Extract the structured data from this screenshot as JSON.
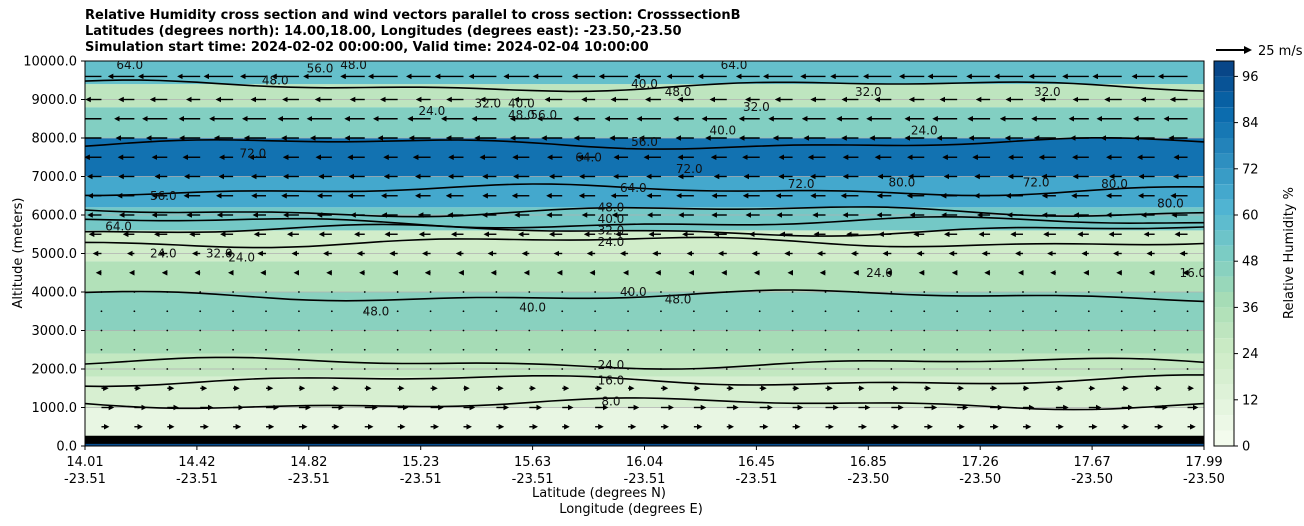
{
  "chart_data": {
    "type": "contour",
    "title_lines": [
      "Relative Humidity cross section and wind vectors parallel to cross section: CrosssectionB",
      "Latitudes (degrees north): 14.00,18.00, Longitudes (degrees east): -23.50,-23.50",
      "Simulation start time: 2024-02-02 00:00:00, Valid time: 2024-02-04 10:00:00"
    ],
    "ylabel": "Altitude (meters)",
    "xlabel_lat": "Latitude (degrees N)",
    "xlabel_lon": "Longitude (degrees E)",
    "ylim": [
      0,
      10000
    ],
    "y_ticks": [
      "0.0",
      "1000.0",
      "2000.0",
      "3000.0",
      "4000.0",
      "5000.0",
      "6000.0",
      "7000.0",
      "8000.0",
      "9000.0",
      "10000.0"
    ],
    "x_ticks": [
      {
        "lat": "14.01",
        "lon": "-23.51"
      },
      {
        "lat": "14.42",
        "lon": "-23.51"
      },
      {
        "lat": "14.82",
        "lon": "-23.51"
      },
      {
        "lat": "15.23",
        "lon": "-23.51"
      },
      {
        "lat": "15.63",
        "lon": "-23.51"
      },
      {
        "lat": "16.04",
        "lon": "-23.51"
      },
      {
        "lat": "16.45",
        "lon": "-23.51"
      },
      {
        "lat": "16.85",
        "lon": "-23.50"
      },
      {
        "lat": "17.26",
        "lon": "-23.50"
      },
      {
        "lat": "17.67",
        "lon": "-23.50"
      },
      {
        "lat": "17.99",
        "lon": "-23.50"
      }
    ],
    "grid": "horizontal",
    "colorbar": {
      "label": "Relative Humidity %",
      "ticks": [
        "0",
        "12",
        "24",
        "36",
        "48",
        "60",
        "72",
        "84",
        "96"
      ],
      "range": [
        0,
        100
      ],
      "levels": [
        0,
        4,
        8,
        12,
        16,
        20,
        24,
        28,
        32,
        36,
        40,
        44,
        48,
        52,
        56,
        60,
        64,
        68,
        72,
        76,
        80,
        84,
        88,
        92,
        96,
        100
      ]
    },
    "quiver_key": "25 m/s",
    "humidity_bands": [
      {
        "z_min": 0,
        "z_max": 150,
        "rh": 96
      },
      {
        "z_min": 150,
        "z_max": 1000,
        "rh": 8
      },
      {
        "z_min": 1000,
        "z_max": 1800,
        "rh": 18
      },
      {
        "z_min": 1800,
        "z_max": 2400,
        "rh": 28
      },
      {
        "z_min": 2400,
        "z_max": 3000,
        "rh": 38
      },
      {
        "z_min": 3000,
        "z_max": 4000,
        "rh": 46
      },
      {
        "z_min": 4000,
        "z_max": 4800,
        "rh": 34
      },
      {
        "z_min": 4800,
        "z_max": 5600,
        "rh": 22
      },
      {
        "z_min": 5600,
        "z_max": 6200,
        "rh": 52
      },
      {
        "z_min": 6200,
        "z_max": 7000,
        "rh": 66
      },
      {
        "z_min": 7000,
        "z_max": 8000,
        "rh": 84
      },
      {
        "z_min": 8000,
        "z_max": 8800,
        "rh": 48
      },
      {
        "z_min": 8800,
        "z_max": 9400,
        "rh": 30
      },
      {
        "z_min": 9400,
        "z_max": 10000,
        "rh": 56
      }
    ],
    "contour_lines": [
      {
        "level": "8.0",
        "z": 1100
      },
      {
        "level": "16.0",
        "z": 1700
      },
      {
        "level": "24.0",
        "z": 2150
      },
      {
        "level": "40.0",
        "z": 3900
      },
      {
        "level": "24.0",
        "z": 5300
      },
      {
        "level": "32.0",
        "z": 5600
      },
      {
        "level": "40.0",
        "z": 5800
      },
      {
        "level": "48.0",
        "z": 6100
      },
      {
        "level": "64.0",
        "z": 6650
      },
      {
        "level": "56.0",
        "z": 7850
      },
      {
        "level": "40.0",
        "z": 9350
      }
    ],
    "contour_labels": [
      {
        "text": "8.0",
        "x_frac": 0.47,
        "z": 1150
      },
      {
        "text": "16.0",
        "x_frac": 0.47,
        "z": 1700
      },
      {
        "text": "24.0",
        "x_frac": 0.47,
        "z": 2100
      },
      {
        "text": "40.0",
        "x_frac": 0.49,
        "z": 4000
      },
      {
        "text": "48.0",
        "x_frac": 0.26,
        "z": 3500
      },
      {
        "text": "40.0",
        "x_frac": 0.4,
        "z": 3600
      },
      {
        "text": "24.0",
        "x_frac": 0.47,
        "z": 5300
      },
      {
        "text": "32.0",
        "x_frac": 0.47,
        "z": 5600
      },
      {
        "text": "40.0",
        "x_frac": 0.47,
        "z": 5900
      },
      {
        "text": "48.0",
        "x_frac": 0.47,
        "z": 6200
      },
      {
        "text": "64.0",
        "x_frac": 0.49,
        "z": 6700
      },
      {
        "text": "64.0",
        "x_frac": 0.45,
        "z": 7500
      },
      {
        "text": "56.0",
        "x_frac": 0.5,
        "z": 7900
      },
      {
        "text": "40.0",
        "x_frac": 0.5,
        "z": 9400
      },
      {
        "text": "64.0",
        "x_frac": 0.03,
        "z": 5700
      },
      {
        "text": "24.0",
        "x_frac": 0.07,
        "z": 5000
      },
      {
        "text": "32.0",
        "x_frac": 0.12,
        "z": 5000
      },
      {
        "text": "56.0",
        "x_frac": 0.07,
        "z": 6500
      },
      {
        "text": "72.0",
        "x_frac": 0.15,
        "z": 7600
      },
      {
        "text": "48.0",
        "x_frac": 0.17,
        "z": 9500
      },
      {
        "text": "56.0",
        "x_frac": 0.21,
        "z": 9800
      },
      {
        "text": "48.0",
        "x_frac": 0.24,
        "z": 9900
      },
      {
        "text": "64.0",
        "x_frac": 0.04,
        "z": 9900
      },
      {
        "text": "24.0",
        "x_frac": 0.31,
        "z": 8700
      },
      {
        "text": "32.0",
        "x_frac": 0.36,
        "z": 8900
      },
      {
        "text": "40.0",
        "x_frac": 0.39,
        "z": 8900
      },
      {
        "text": "48.0",
        "x_frac": 0.39,
        "z": 8600
      },
      {
        "text": "56.0",
        "x_frac": 0.41,
        "z": 8600
      },
      {
        "text": "72.0",
        "x_frac": 0.54,
        "z": 7200
      },
      {
        "text": "72.0",
        "x_frac": 0.64,
        "z": 6800
      },
      {
        "text": "80.0",
        "x_frac": 0.73,
        "z": 6850
      },
      {
        "text": "72.0",
        "x_frac": 0.85,
        "z": 6850
      },
      {
        "text": "80.0",
        "x_frac": 0.92,
        "z": 6800
      },
      {
        "text": "80.0",
        "x_frac": 0.97,
        "z": 6300
      },
      {
        "text": "24.0",
        "x_frac": 0.71,
        "z": 4500
      },
      {
        "text": "16.0",
        "x_frac": 0.99,
        "z": 4500
      },
      {
        "text": "48.0",
        "x_frac": 0.53,
        "z": 3800
      },
      {
        "text": "24.0",
        "x_frac": 0.14,
        "z": 4900
      },
      {
        "text": "32.0",
        "x_frac": 0.7,
        "z": 9200
      },
      {
        "text": "32.0",
        "x_frac": 0.86,
        "z": 9200
      },
      {
        "text": "24.0",
        "x_frac": 0.75,
        "z": 8200
      },
      {
        "text": "40.0",
        "x_frac": 0.57,
        "z": 8200
      },
      {
        "text": "64.0",
        "x_frac": 0.58,
        "z": 9900
      },
      {
        "text": "32.0",
        "x_frac": 0.6,
        "z": 8800
      },
      {
        "text": "48.0",
        "x_frac": 0.53,
        "z": 9200
      }
    ],
    "wind_rows": [
      {
        "z": 9600,
        "u": -18
      },
      {
        "z": 9000,
        "u": -10
      },
      {
        "z": 8500,
        "u": -15
      },
      {
        "z": 8000,
        "u": -13
      },
      {
        "z": 7500,
        "u": -10
      },
      {
        "z": 7000,
        "u": -9
      },
      {
        "z": 6500,
        "u": -10
      },
      {
        "z": 6000,
        "u": -9
      },
      {
        "z": 5500,
        "u": -7
      },
      {
        "z": 5000,
        "u": -4
      },
      {
        "z": 4500,
        "u": -2
      },
      {
        "z": 4000,
        "u": -1
      },
      {
        "z": 3500,
        "u": 1
      },
      {
        "z": 3000,
        "u": 0
      },
      {
        "z": 2500,
        "u": 0
      },
      {
        "z": 2000,
        "u": 1
      },
      {
        "z": 1500,
        "u": 3
      },
      {
        "z": 1000,
        "u": 7
      },
      {
        "z": 500,
        "u": 4
      }
    ]
  }
}
